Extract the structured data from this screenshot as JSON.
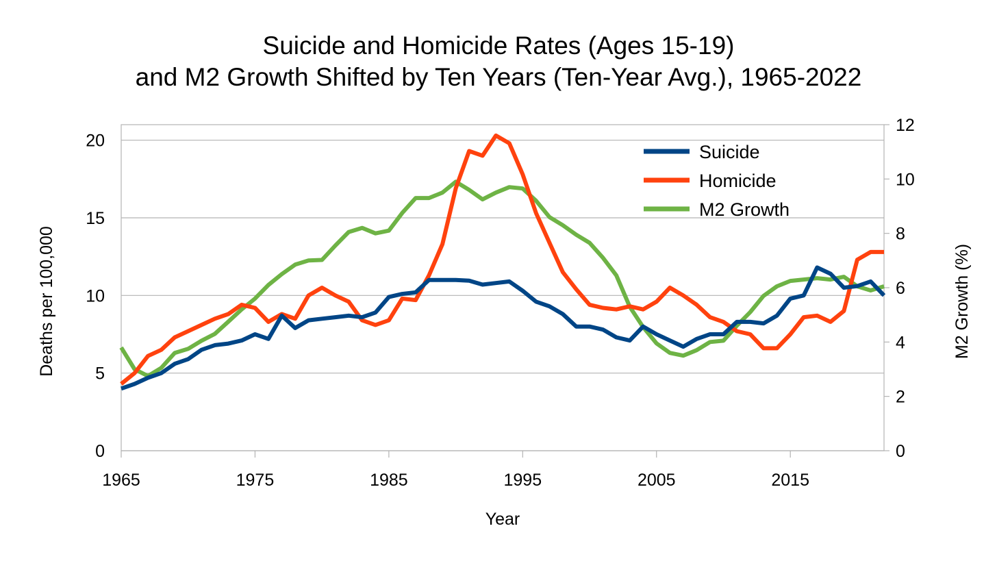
{
  "chart_data": {
    "type": "line",
    "title_lines": [
      "Suicide and Homicide Rates (Ages 15-19)",
      "and M2 Growth Shifted by Ten Years (Ten-Year Avg.), 1965-2022"
    ],
    "xlabel": "Year",
    "ylabel_left": "Deaths per 100,000",
    "ylabel_right": "M2 Growth (%)",
    "xlim": [
      1965,
      2022
    ],
    "ylim_left": [
      0,
      21
    ],
    "ylim_right": [
      0,
      12
    ],
    "x_ticks": [
      1965,
      1975,
      1985,
      1995,
      2005,
      2015
    ],
    "y_ticks_left": [
      0,
      5,
      10,
      15,
      20
    ],
    "y_ticks_right": [
      0,
      2,
      4,
      6,
      8,
      10,
      12
    ],
    "grid": true,
    "legend_position": "top-right",
    "x": [
      1965,
      1966,
      1967,
      1968,
      1969,
      1970,
      1971,
      1972,
      1973,
      1974,
      1975,
      1976,
      1977,
      1978,
      1979,
      1980,
      1981,
      1982,
      1983,
      1984,
      1985,
      1986,
      1987,
      1988,
      1989,
      1990,
      1991,
      1992,
      1993,
      1994,
      1995,
      1996,
      1997,
      1998,
      1999,
      2000,
      2001,
      2002,
      2003,
      2004,
      2005,
      2006,
      2007,
      2008,
      2009,
      2010,
      2011,
      2012,
      2013,
      2014,
      2015,
      2016,
      2017,
      2018,
      2019,
      2020,
      2021,
      2022
    ],
    "series": [
      {
        "name": "Suicide",
        "axis": "left",
        "color": "#004586",
        "values": [
          4.0,
          4.3,
          4.7,
          5.0,
          5.6,
          5.9,
          6.5,
          6.8,
          6.9,
          7.1,
          7.5,
          7.2,
          8.7,
          7.9,
          8.4,
          8.5,
          8.6,
          8.7,
          8.6,
          8.9,
          9.9,
          10.1,
          10.2,
          11.0,
          11.0,
          11.0,
          10.95,
          10.7,
          10.8,
          10.9,
          10.3,
          9.6,
          9.3,
          8.8,
          8.0,
          8.0,
          7.8,
          7.3,
          7.1,
          8.0,
          7.5,
          7.1,
          6.7,
          7.2,
          7.5,
          7.5,
          8.3,
          8.3,
          8.2,
          8.7,
          9.8,
          10.0,
          11.8,
          11.4,
          10.5,
          10.6,
          10.9,
          10.0
        ]
      },
      {
        "name": "Homicide",
        "axis": "left",
        "color": "#ff420e",
        "values": [
          4.3,
          5.0,
          6.1,
          6.5,
          7.3,
          7.7,
          8.1,
          8.5,
          8.8,
          9.4,
          9.2,
          8.3,
          8.8,
          8.5,
          10.0,
          10.5,
          10.0,
          9.6,
          8.4,
          8.1,
          8.4,
          9.8,
          9.7,
          11.3,
          13.3,
          16.9,
          19.3,
          19.0,
          20.3,
          19.8,
          17.8,
          15.3,
          13.4,
          11.5,
          10.4,
          9.4,
          9.2,
          9.1,
          9.3,
          9.1,
          9.6,
          10.5,
          10.0,
          9.4,
          8.6,
          8.3,
          7.7,
          7.5,
          6.6,
          6.6,
          7.5,
          8.6,
          8.7,
          8.3,
          9.0,
          12.3,
          12.8,
          12.8
        ]
      },
      {
        "name": "M2 Growth",
        "axis": "right",
        "color": "#6eb345",
        "values": [
          3.8,
          3.0,
          2.75,
          3.05,
          3.6,
          3.75,
          4.05,
          4.3,
          4.75,
          5.2,
          5.6,
          6.1,
          6.5,
          6.85,
          7.0,
          7.02,
          7.55,
          8.05,
          8.2,
          8.0,
          8.1,
          8.75,
          9.3,
          9.3,
          9.5,
          9.9,
          9.6,
          9.25,
          9.5,
          9.7,
          9.65,
          9.2,
          8.6,
          8.3,
          7.95,
          7.65,
          7.1,
          6.45,
          5.3,
          4.55,
          3.95,
          3.6,
          3.5,
          3.7,
          4.0,
          4.05,
          4.6,
          5.1,
          5.7,
          6.05,
          6.25,
          6.3,
          6.35,
          6.3,
          6.4,
          6.05,
          5.9,
          6.05
        ]
      }
    ]
  }
}
